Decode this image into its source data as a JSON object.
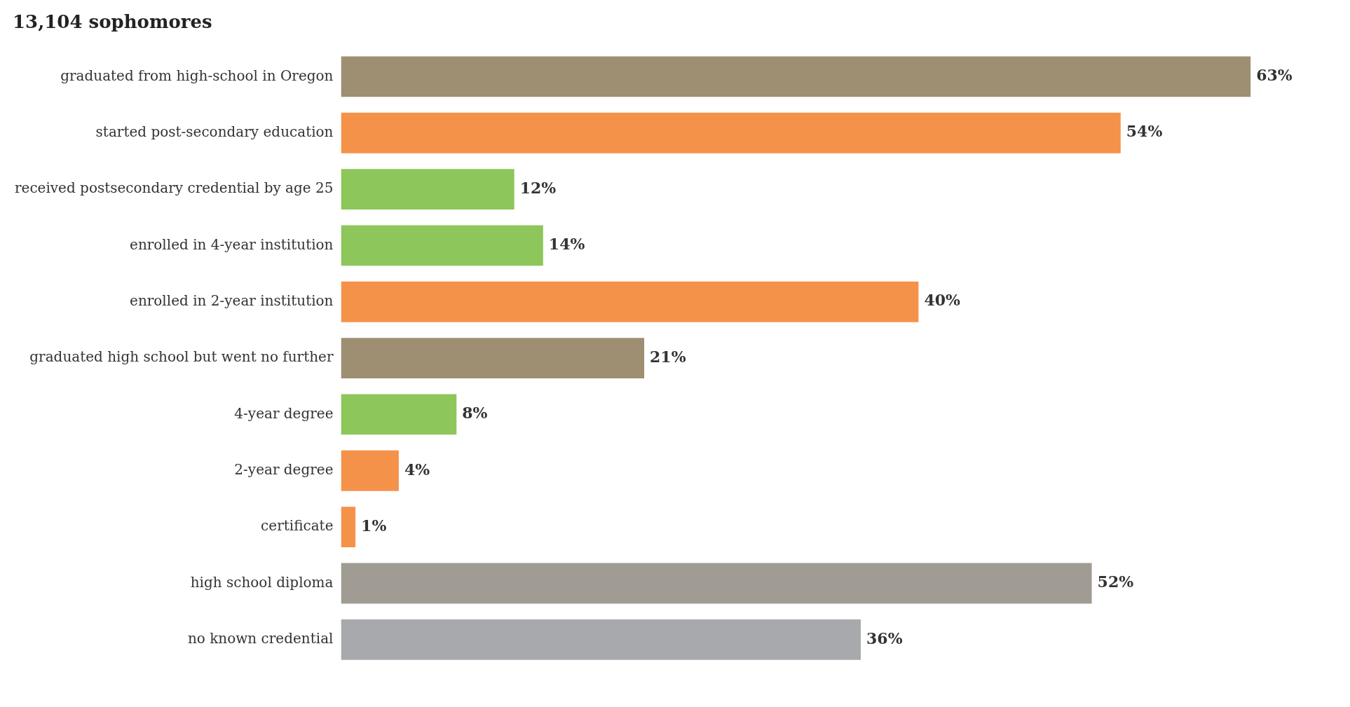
{
  "chart_data": {
    "type": "other",
    "annotations": [
      "13,104 sophomores"
    ],
    "categories": [
      "graduated from high-school in Oregon",
      "started post-secondary education",
      "received postsecondary credential by age 25",
      "enrolled in 4-year institution",
      "enrolled in 2-year institution",
      "graduated high school but went no further",
      "4-year degree",
      "2-year degree",
      "certificate",
      "high school diploma",
      "no known credential"
    ],
    "values": [
      63,
      54,
      12,
      14,
      40,
      21,
      8,
      4,
      1,
      52,
      36
    ],
    "value_labels": [
      "63%",
      "54%",
      "12%",
      "14%",
      "40%",
      "21%",
      "8%",
      "4%",
      "1%",
      "52%",
      "36%"
    ],
    "colors": [
      "#9e8f72",
      "#f5924a",
      "#8dc65a",
      "#8dc65a",
      "#f5924a",
      "#9e8f72",
      "#8dc65a",
      "#f5924a",
      "#f5924a",
      "#a09c94",
      "#a7a9ac"
    ]
  }
}
